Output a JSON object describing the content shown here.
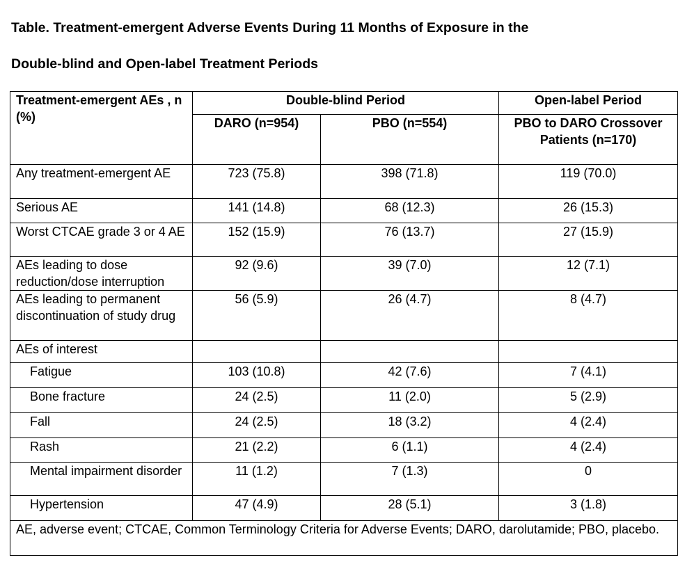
{
  "title": {
    "line1": "Table. Treatment-emergent Adverse Events During 11 Months of Exposure in the",
    "line2": "Double-blind and Open-label Treatment Periods"
  },
  "table": {
    "header": {
      "row_label": "Treatment-emergent AEs , n (%)",
      "group_double_blind": "Double-blind Period",
      "group_open_label": "Open-label Period",
      "col_daro": "DARO (n=954)",
      "col_pbo": "PBO (n=554)",
      "col_crossover": "PBO to DARO Crossover Patients (n=170)"
    },
    "rows": [
      {
        "label": "Any treatment-emergent AE",
        "daro": "723 (75.8)",
        "pbo": "398 (71.8)",
        "crossover": "119 (70.0)"
      },
      {
        "label": "Serious AE",
        "daro": "141 (14.8)",
        "pbo": "68 (12.3)",
        "crossover": "26 (15.3)"
      },
      {
        "label": "Worst CTCAE grade 3 or 4 AE",
        "daro": "152 (15.9)",
        "pbo": "76 (13.7)",
        "crossover": "27 (15.9)"
      },
      {
        "label": "AEs leading to dose reduction/dose interruption",
        "daro": "92 (9.6)",
        "pbo": "39 (7.0)",
        "crossover": "12 (7.1)"
      },
      {
        "label": "AEs leading to permanent discontinuation of study drug",
        "daro": "56 (5.9)",
        "pbo": "26 (4.7)",
        "crossover": "8 (4.7)"
      },
      {
        "label": "AEs of interest",
        "daro": "",
        "pbo": "",
        "crossover": ""
      },
      {
        "label": "Fatigue",
        "daro": "103 (10.8)",
        "pbo": "42 (7.6)",
        "crossover": "7 (4.1)"
      },
      {
        "label": "Bone fracture",
        "daro": "24 (2.5)",
        "pbo": "11 (2.0)",
        "crossover": "5 (2.9)"
      },
      {
        "label": "Fall",
        "daro": "24 (2.5)",
        "pbo": "18 (3.2)",
        "crossover": "4 (2.4)"
      },
      {
        "label": "Rash",
        "daro": "21 (2.2)",
        "pbo": "6 (1.1)",
        "crossover": "4 (2.4)"
      },
      {
        "label": "Mental impairment disorder",
        "daro": "11 (1.2)",
        "pbo": "7 (1.3)",
        "crossover": "0"
      },
      {
        "label": "Hypertension",
        "daro": "47 (4.9)",
        "pbo": "28 (5.1)",
        "crossover": "3 (1.8)"
      }
    ],
    "footnote": "AE, adverse event; CTCAE, Common Terminology Criteria for Adverse Events; DARO, darolutamide; PBO, placebo."
  }
}
